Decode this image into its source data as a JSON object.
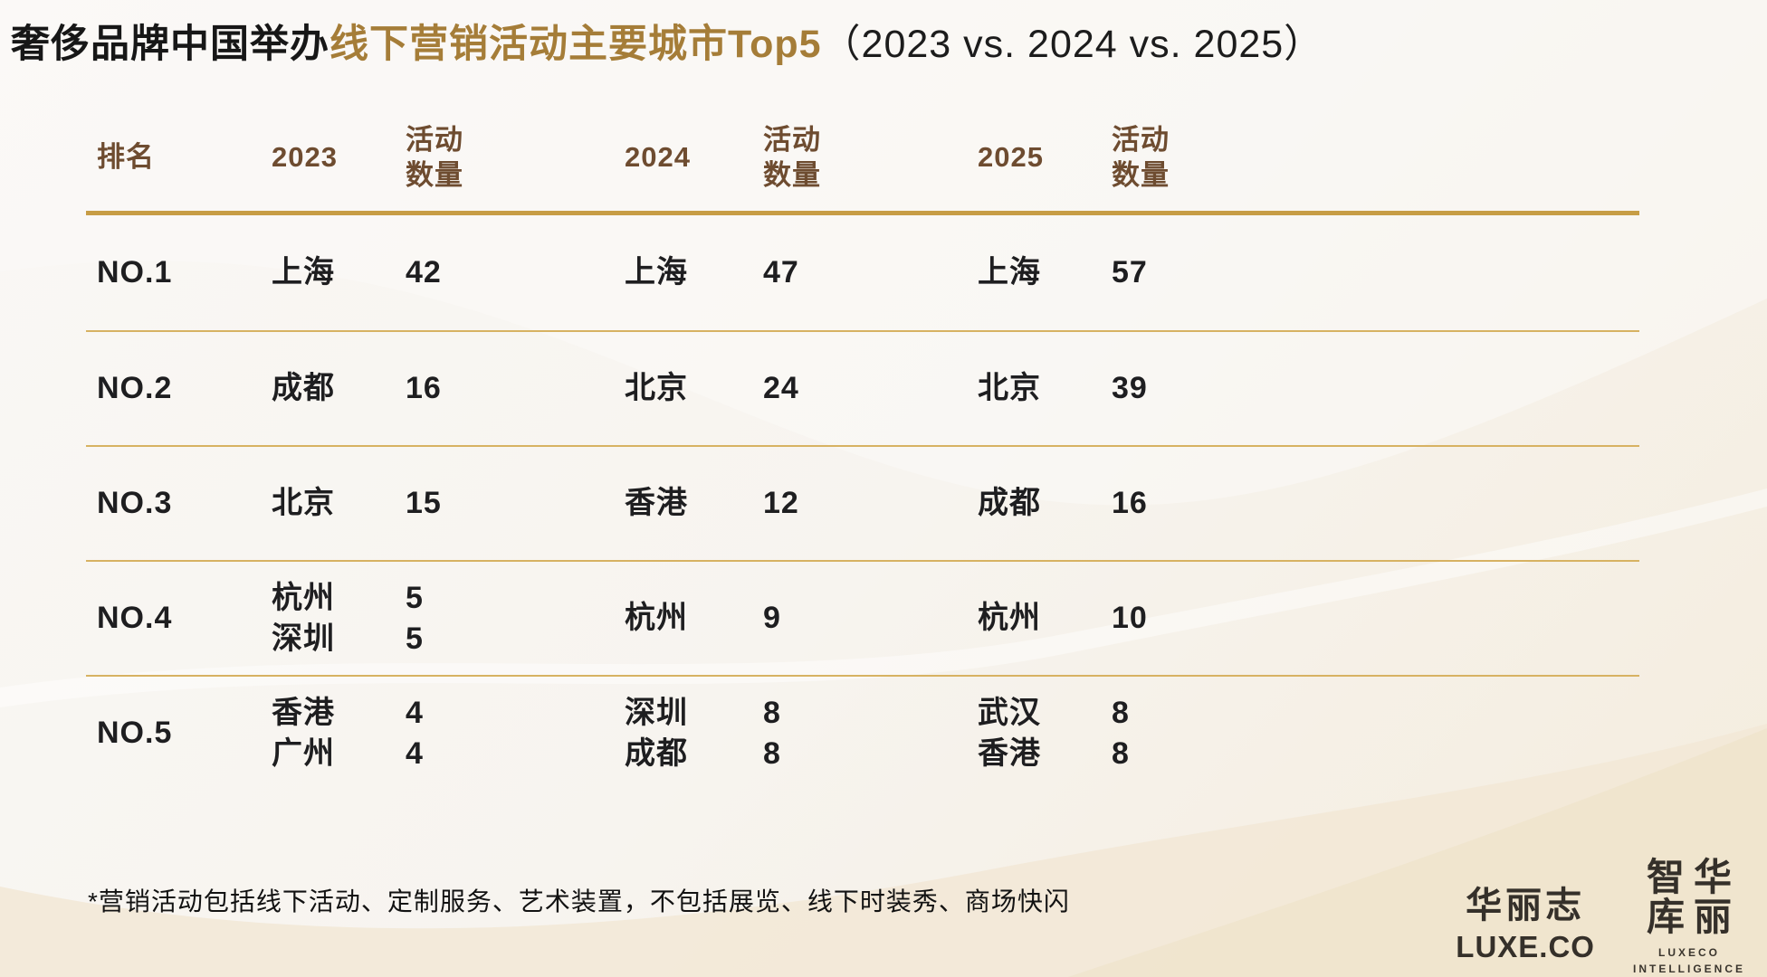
{
  "title": {
    "part1": "奢侈品牌中国举办",
    "part2": "线下营销活动主要城市Top5",
    "part3": "（2023 vs. 2024 vs. 2025）"
  },
  "table": {
    "headers": {
      "rank": "排名",
      "year1": "2023",
      "count1": "活动\n数量",
      "year2": "2024",
      "count2": "活动\n数量",
      "year3": "2025",
      "count3": "活动\n数量"
    },
    "rows": [
      {
        "rank": "NO.1",
        "cells": [
          [
            "上海"
          ],
          [
            "42"
          ],
          [
            "上海"
          ],
          [
            "47"
          ],
          [
            "上海"
          ],
          [
            "57"
          ]
        ]
      },
      {
        "rank": "NO.2",
        "cells": [
          [
            "成都"
          ],
          [
            "16"
          ],
          [
            "北京"
          ],
          [
            "24"
          ],
          [
            "北京"
          ],
          [
            "39"
          ]
        ]
      },
      {
        "rank": "NO.3",
        "cells": [
          [
            "北京"
          ],
          [
            "15"
          ],
          [
            "香港"
          ],
          [
            "12"
          ],
          [
            "成都"
          ],
          [
            "16"
          ]
        ]
      },
      {
        "rank": "NO.4",
        "cells": [
          [
            "杭州",
            "深圳"
          ],
          [
            "5",
            "5"
          ],
          [
            "杭州"
          ],
          [
            "9"
          ],
          [
            "杭州"
          ],
          [
            "10"
          ]
        ]
      },
      {
        "rank": "NO.5",
        "cells": [
          [
            "香港",
            "广州"
          ],
          [
            "4",
            "4"
          ],
          [
            "深圳",
            "成都"
          ],
          [
            "8",
            "8"
          ],
          [
            "武汉",
            "香港"
          ],
          [
            "8",
            "8"
          ]
        ]
      }
    ]
  },
  "footnote": "*营销活动包括线下活动、定制服务、艺术装置，不包括展览、线下时装秀、商场快闪",
  "logos": {
    "luxeco_cn": "华丽志",
    "luxeco_en": "LUXE.CO",
    "seal_chars": [
      "智",
      "华",
      "库",
      "丽"
    ],
    "intel_line1": "LUXECO",
    "intel_line2": "INTELLIGENCE"
  },
  "colors": {
    "title_gold": "#a57d38",
    "header_brown": "#6e4c30",
    "rule_thick_gold": "#c79d45",
    "rule_thin_gold": "#d7b262",
    "body_text": "#1e1e20",
    "background_cream": "#f4ecdd"
  },
  "chart_data": {
    "type": "table",
    "title": "奢侈品牌中国举办线下营销活动主要城市Top5（2023 vs. 2024 vs. 2025）",
    "columns": [
      "排名",
      "2023",
      "活动数量",
      "2024",
      "活动数量",
      "2025",
      "活动数量"
    ],
    "rows": [
      [
        "NO.1",
        "上海",
        "42",
        "上海",
        "47",
        "上海",
        "57"
      ],
      [
        "NO.2",
        "成都",
        "16",
        "北京",
        "24",
        "北京",
        "39"
      ],
      [
        "NO.3",
        "北京",
        "15",
        "香港",
        "12",
        "成都",
        "16"
      ],
      [
        "NO.4",
        "杭州 / 深圳",
        "5 / 5",
        "杭州",
        "9",
        "杭州",
        "10"
      ],
      [
        "NO.5",
        "香港 / 广州",
        "4 / 4",
        "深圳 / 成都",
        "8 / 8",
        "武汉 / 香港",
        "8 / 8"
      ]
    ],
    "footnote": "*营销活动包括线下活动、定制服务、艺术装置，不包括展览、线下时装秀、商场快闪",
    "legend_position": "none",
    "grid": "horizontal-gold-rules"
  }
}
